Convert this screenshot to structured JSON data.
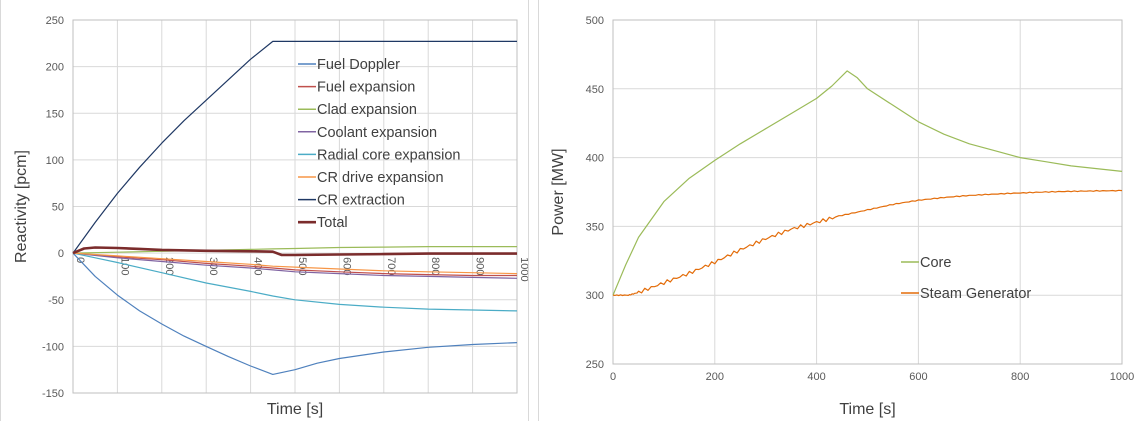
{
  "chart_data": [
    {
      "type": "line",
      "xlabel": "Time [s]",
      "ylabel": "Reactivity [pcm]",
      "xlim": [
        0,
        1000
      ],
      "ylim": [
        -150,
        250
      ],
      "xticks": [
        "0",
        "100",
        "200",
        "300",
        "400",
        "500",
        "600",
        "700",
        "800",
        "900",
        "1000"
      ],
      "yticks": [
        "250",
        "200",
        "150",
        "100",
        "50",
        "0",
        "-50",
        "-100",
        "-150"
      ],
      "grid": true,
      "legend_position": "top-right",
      "series": [
        {
          "name": "Fuel Doppler",
          "color": "#4f81bd",
          "x": [
            0,
            50,
            100,
            150,
            200,
            250,
            300,
            350,
            400,
            450,
            500,
            550,
            600,
            700,
            800,
            900,
            1000
          ],
          "y": [
            0,
            -25,
            -45,
            -62,
            -76,
            -89,
            -100,
            -111,
            -121,
            -130,
            -125,
            -118,
            -113,
            -106,
            -101,
            -98,
            -96
          ]
        },
        {
          "name": "Fuel expansion",
          "color": "#c0504d",
          "x": [
            0,
            100,
            200,
            300,
            400,
            450,
            500,
            600,
            700,
            800,
            900,
            1000
          ],
          "y": [
            0,
            -4,
            -7,
            -11,
            -14,
            -16,
            -18,
            -20,
            -22,
            -23,
            -24,
            -24
          ]
        },
        {
          "name": "Clad expansion",
          "color": "#9bbb59",
          "x": [
            0,
            100,
            200,
            300,
            400,
            450,
            500,
            600,
            700,
            800,
            900,
            1000
          ],
          "y": [
            0,
            1,
            2,
            3,
            4,
            4.5,
            5,
            6,
            6.5,
            7,
            7,
            7
          ]
        },
        {
          "name": "Coolant expansion",
          "color": "#8064a2",
          "x": [
            0,
            100,
            200,
            300,
            400,
            450,
            500,
            600,
            700,
            800,
            900,
            1000
          ],
          "y": [
            0,
            -5,
            -9,
            -13,
            -16,
            -18,
            -20,
            -22,
            -24,
            -25,
            -26,
            -27
          ]
        },
        {
          "name": "Radial core expansion",
          "color": "#4bacc6",
          "x": [
            0,
            50,
            100,
            200,
            300,
            400,
            450,
            500,
            600,
            700,
            800,
            900,
            1000
          ],
          "y": [
            0,
            -5,
            -10,
            -21,
            -32,
            -41,
            -46,
            -50,
            -55,
            -58,
            -60,
            -61,
            -62
          ]
        },
        {
          "name": "CR drive expansion",
          "color": "#f79646",
          "x": [
            0,
            100,
            200,
            300,
            400,
            450,
            500,
            600,
            700,
            800,
            900,
            1000
          ],
          "y": [
            0,
            -3,
            -6,
            -9,
            -12,
            -14,
            -15,
            -17,
            -19,
            -20,
            -21,
            -22
          ]
        },
        {
          "name": "CR extraction",
          "color": "#1f3864",
          "x": [
            0,
            50,
            100,
            150,
            200,
            250,
            300,
            350,
            400,
            450,
            500,
            600,
            700,
            800,
            900,
            1000
          ],
          "y": [
            0,
            33,
            64,
            92,
            118,
            142,
            164,
            186,
            208,
            227,
            227,
            227,
            227,
            227,
            227,
            227
          ]
        },
        {
          "name": "Total",
          "color": "#7b2c2c",
          "x": [
            0,
            25,
            50,
            100,
            150,
            200,
            300,
            400,
            450,
            470,
            500,
            600,
            700,
            800,
            900,
            1000
          ],
          "y": [
            0,
            5,
            6,
            5.5,
            4.5,
            3.5,
            2.5,
            2,
            1.5,
            -2,
            -2,
            -1.5,
            -1,
            -0.5,
            -0.5,
            -0.5
          ]
        }
      ]
    },
    {
      "type": "line",
      "xlabel": "Time [s]",
      "ylabel": "Power [MW]",
      "xlim": [
        0,
        1000
      ],
      "ylim": [
        250,
        500
      ],
      "xticks": [
        "0",
        "200",
        "400",
        "600",
        "800",
        "1000"
      ],
      "yticks": [
        "500",
        "450",
        "400",
        "350",
        "300",
        "250"
      ],
      "grid": true,
      "legend_position": "center-right",
      "series": [
        {
          "name": "Core",
          "color": "#9bbb59",
          "x": [
            0,
            25,
            50,
            100,
            150,
            200,
            250,
            300,
            350,
            400,
            430,
            460,
            480,
            500,
            550,
            600,
            650,
            700,
            750,
            800,
            850,
            900,
            950,
            1000
          ],
          "y": [
            300,
            322,
            342,
            368,
            385,
            398,
            410,
            421,
            432,
            443,
            452,
            463,
            458,
            450,
            438,
            426,
            417,
            410,
            405,
            400,
            397,
            394,
            392,
            390
          ]
        },
        {
          "name": "Steam Generator",
          "color": "#e36c09",
          "x": [
            0,
            30,
            50,
            100,
            150,
            200,
            250,
            300,
            350,
            400,
            450,
            500,
            550,
            600,
            650,
            700,
            750,
            800,
            850,
            900,
            950,
            1000
          ],
          "y": [
            300,
            300,
            302,
            309,
            316,
            324,
            333,
            341,
            348,
            353,
            358,
            362,
            366,
            369,
            371,
            372.5,
            373.5,
            374.3,
            375,
            375.5,
            375.8,
            376
          ]
        }
      ]
    }
  ]
}
